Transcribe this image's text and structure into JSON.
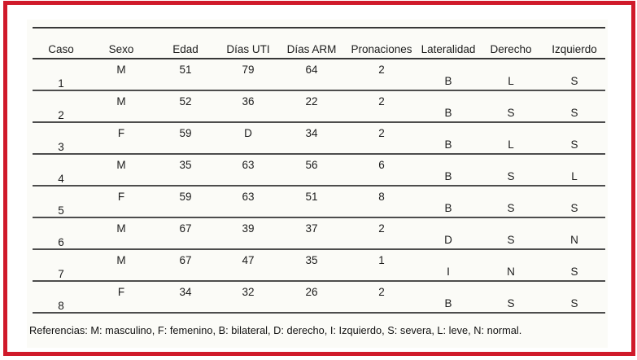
{
  "page": {
    "frame_color": "#d01a2a",
    "doc_background": "#fbfbf7"
  },
  "table": {
    "columns": [
      "Caso",
      "Sexo",
      "Edad",
      "Días UTI",
      "Días ARM",
      "Pronaciones",
      "Lateralidad",
      "Derecho",
      "Izquierdo"
    ],
    "rows": [
      [
        "1",
        "M",
        "51",
        "79",
        "64",
        "2",
        "B",
        "L",
        "S"
      ],
      [
        "2",
        "M",
        "52",
        "36",
        "22",
        "2",
        "B",
        "S",
        "S"
      ],
      [
        "3",
        "F",
        "59",
        "D",
        "34",
        "2",
        "B",
        "L",
        "S"
      ],
      [
        "4",
        "M",
        "35",
        "63",
        "56",
        "6",
        "B",
        "S",
        "L"
      ],
      [
        "5",
        "F",
        "59",
        "63",
        "51",
        "8",
        "B",
        "S",
        "S"
      ],
      [
        "6",
        "M",
        "67",
        "39",
        "37",
        "2",
        "D",
        "S",
        "N"
      ],
      [
        "7",
        "M",
        "67",
        "47",
        "35",
        "1",
        "I",
        "N",
        "S"
      ],
      [
        "8",
        "F",
        "34",
        "32",
        "26",
        "2",
        "B",
        "S",
        "S"
      ]
    ]
  },
  "footnote": {
    "text": "Referencias: M: masculino, F: femenino, B: bilateral, D: derecho, I: Izquierdo, S: severa, L: leve, N: normal."
  }
}
